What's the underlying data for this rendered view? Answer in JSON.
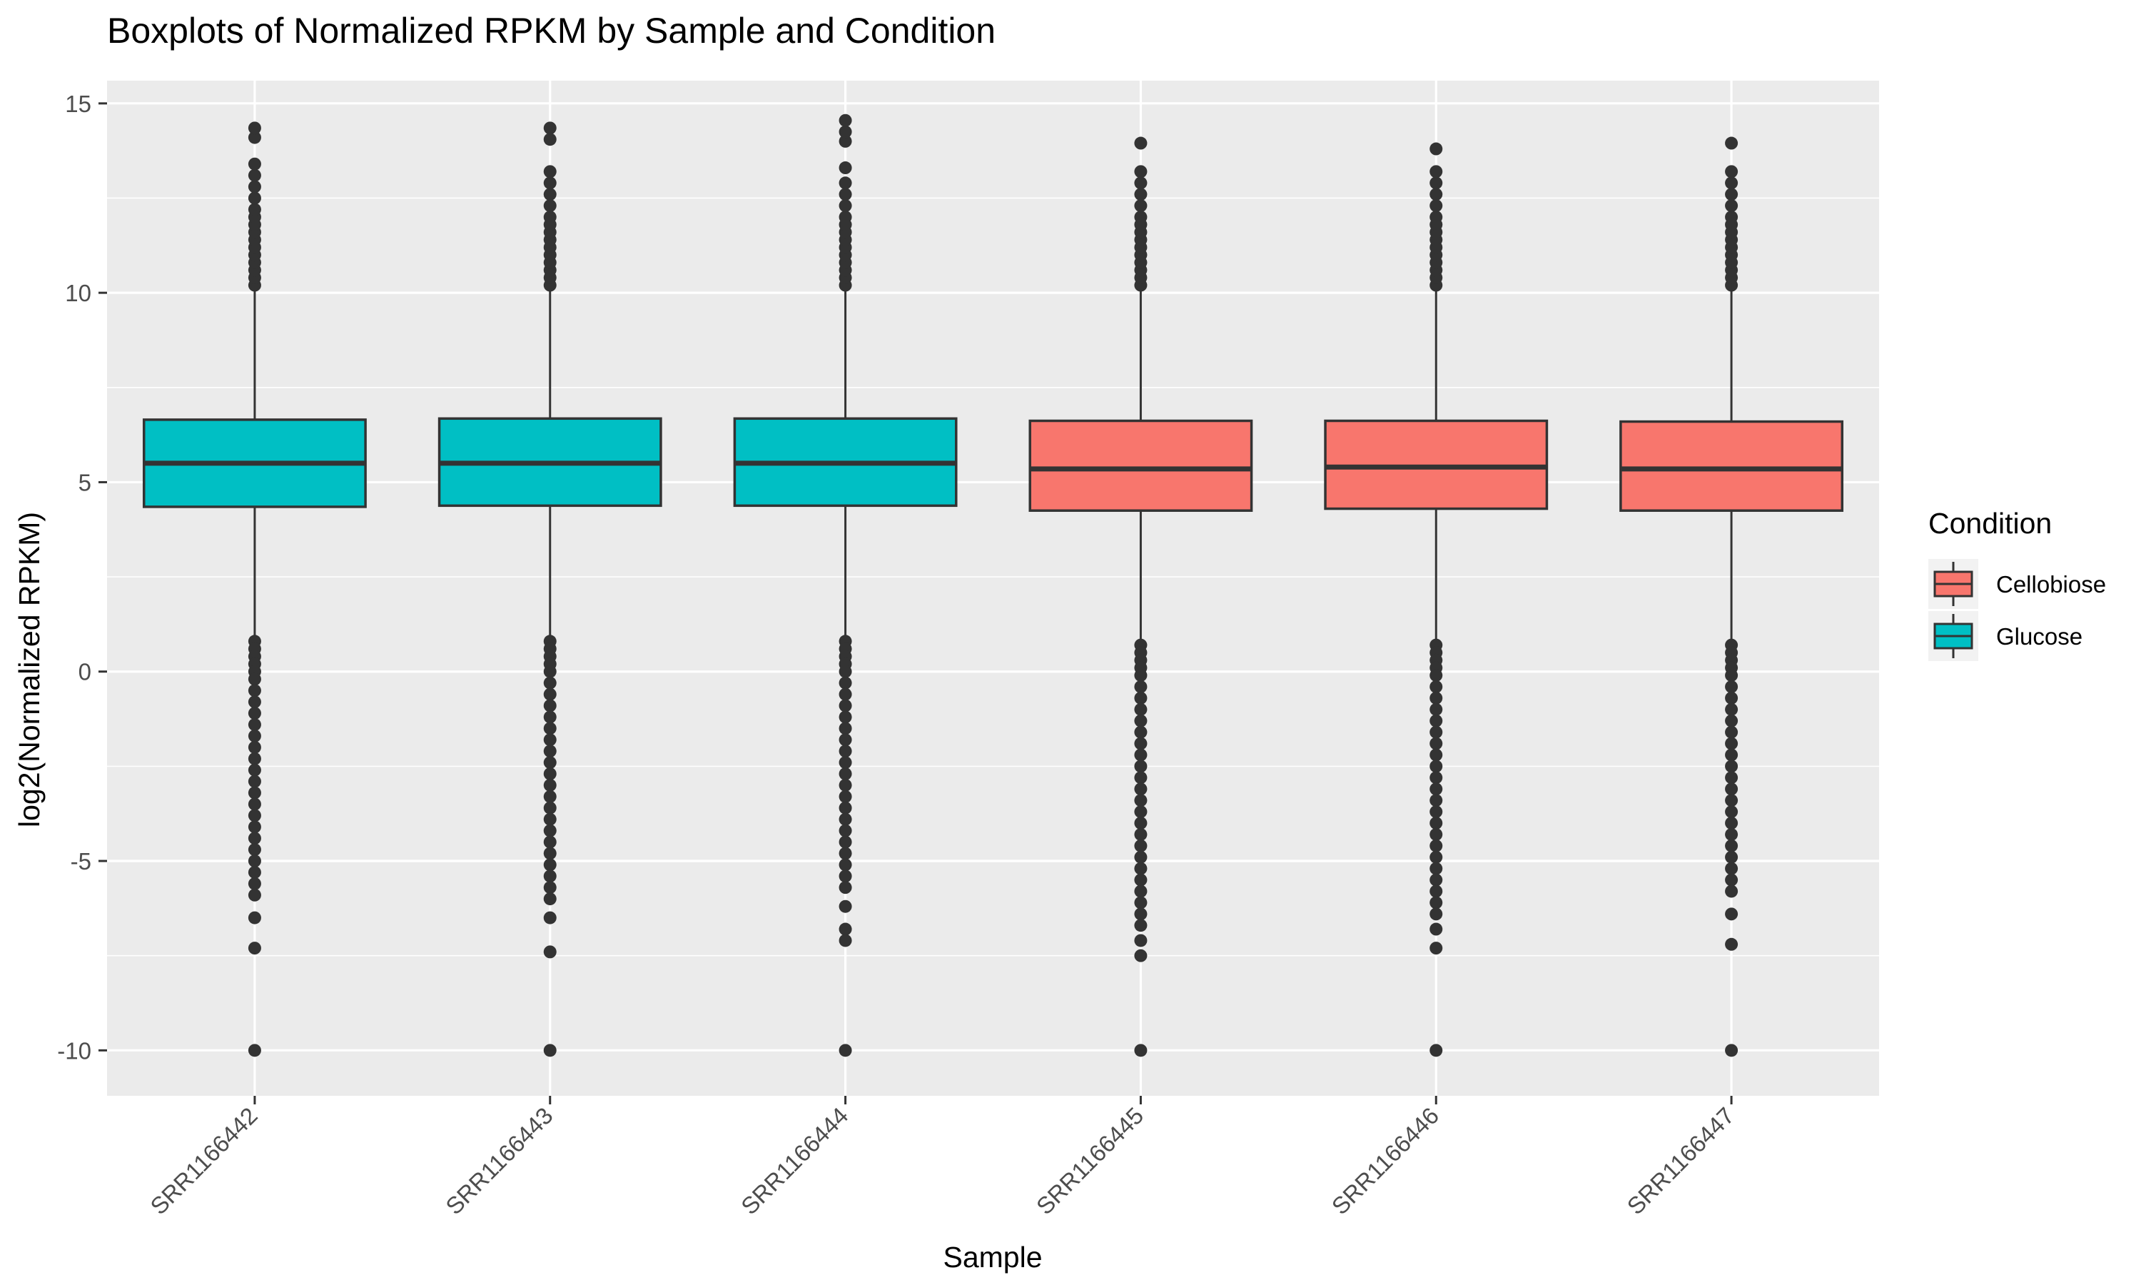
{
  "chart_data": {
    "type": "boxplot",
    "title": "Boxplots of Normalized RPKM by Sample and Condition",
    "xlabel": "Sample",
    "ylabel": "log2(Normalized RPKM)",
    "ylim": [
      -11.2,
      15.6
    ],
    "yticks": [
      "-10",
      "-5",
      "0",
      "5",
      "10",
      "15"
    ],
    "categories": [
      "SRR1166442",
      "SRR1166443",
      "SRR1166444",
      "SRR1166445",
      "SRR1166446",
      "SRR1166447"
    ],
    "legend": {
      "title": "Condition",
      "position": "right",
      "entries": [
        {
          "label": "Cellobiose",
          "color": "#F8766D"
        },
        {
          "label": "Glucose",
          "color": "#00BFC4"
        }
      ]
    },
    "colors": {
      "Cellobiose": "#F8766D",
      "Glucose": "#00BFC4",
      "panel": "#EBEBEB",
      "grid": "#FFFFFF",
      "box_line": "#333333"
    },
    "boxes": [
      {
        "sample": "SRR1166442",
        "condition": "Glucose",
        "q1": 4.35,
        "median": 5.5,
        "q3": 6.65,
        "whisker_low": 0.9,
        "whisker_high": 10.1,
        "outliers_high": [
          10.2,
          10.4,
          10.6,
          10.8,
          11.0,
          11.2,
          11.4,
          11.6,
          11.8,
          12.0,
          12.2,
          12.5,
          12.8,
          13.1,
          13.4,
          14.1,
          14.35
        ],
        "outliers_low": [
          0.8,
          0.6,
          0.4,
          0.2,
          0.0,
          -0.2,
          -0.5,
          -0.8,
          -1.1,
          -1.4,
          -1.7,
          -2.0,
          -2.3,
          -2.6,
          -2.9,
          -3.2,
          -3.5,
          -3.8,
          -4.1,
          -4.4,
          -4.7,
          -5.0,
          -5.3,
          -5.6,
          -5.9,
          -6.5,
          -7.3,
          -10.0
        ]
      },
      {
        "sample": "SRR1166443",
        "condition": "Glucose",
        "q1": 4.38,
        "median": 5.5,
        "q3": 6.68,
        "whisker_low": 0.9,
        "whisker_high": 10.1,
        "outliers_high": [
          10.2,
          10.4,
          10.6,
          10.8,
          11.0,
          11.2,
          11.4,
          11.6,
          11.8,
          12.0,
          12.3,
          12.6,
          12.9,
          13.2,
          14.05,
          14.35
        ],
        "outliers_low": [
          0.8,
          0.6,
          0.4,
          0.2,
          0.0,
          -0.3,
          -0.6,
          -0.9,
          -1.2,
          -1.5,
          -1.8,
          -2.1,
          -2.4,
          -2.7,
          -3.0,
          -3.3,
          -3.6,
          -3.9,
          -4.2,
          -4.5,
          -4.8,
          -5.1,
          -5.4,
          -5.7,
          -6.0,
          -6.5,
          -7.4,
          -10.0
        ]
      },
      {
        "sample": "SRR1166444",
        "condition": "Glucose",
        "q1": 4.38,
        "median": 5.5,
        "q3": 6.68,
        "whisker_low": 0.9,
        "whisker_high": 10.1,
        "outliers_high": [
          10.2,
          10.4,
          10.6,
          10.8,
          11.0,
          11.2,
          11.4,
          11.6,
          11.8,
          12.0,
          12.3,
          12.6,
          12.9,
          13.3,
          14.0,
          14.25,
          14.55
        ],
        "outliers_low": [
          0.8,
          0.6,
          0.4,
          0.2,
          0.0,
          -0.3,
          -0.6,
          -0.9,
          -1.2,
          -1.5,
          -1.8,
          -2.1,
          -2.4,
          -2.7,
          -3.0,
          -3.3,
          -3.6,
          -3.9,
          -4.2,
          -4.5,
          -4.8,
          -5.1,
          -5.4,
          -5.7,
          -6.2,
          -6.8,
          -7.1,
          -10.0
        ]
      },
      {
        "sample": "SRR1166445",
        "condition": "Cellobiose",
        "q1": 4.25,
        "median": 5.35,
        "q3": 6.62,
        "whisker_low": 0.75,
        "whisker_high": 10.1,
        "outliers_high": [
          10.2,
          10.4,
          10.6,
          10.8,
          11.0,
          11.2,
          11.4,
          11.6,
          11.8,
          12.0,
          12.3,
          12.6,
          12.9,
          13.2,
          13.95
        ],
        "outliers_low": [
          0.7,
          0.5,
          0.3,
          0.1,
          -0.1,
          -0.4,
          -0.7,
          -1.0,
          -1.3,
          -1.6,
          -1.9,
          -2.2,
          -2.5,
          -2.8,
          -3.1,
          -3.4,
          -3.7,
          -4.0,
          -4.3,
          -4.6,
          -4.9,
          -5.2,
          -5.5,
          -5.8,
          -6.1,
          -6.4,
          -6.7,
          -7.1,
          -7.5,
          -10.0
        ]
      },
      {
        "sample": "SRR1166446",
        "condition": "Cellobiose",
        "q1": 4.3,
        "median": 5.4,
        "q3": 6.62,
        "whisker_low": 0.8,
        "whisker_high": 10.1,
        "outliers_high": [
          10.2,
          10.4,
          10.6,
          10.8,
          11.0,
          11.2,
          11.4,
          11.6,
          11.8,
          12.0,
          12.3,
          12.6,
          12.9,
          13.2,
          13.8
        ],
        "outliers_low": [
          0.7,
          0.5,
          0.3,
          0.1,
          -0.1,
          -0.4,
          -0.7,
          -1.0,
          -1.3,
          -1.6,
          -1.9,
          -2.2,
          -2.5,
          -2.8,
          -3.1,
          -3.4,
          -3.7,
          -4.0,
          -4.3,
          -4.6,
          -4.9,
          -5.2,
          -5.5,
          -5.8,
          -6.1,
          -6.4,
          -6.8,
          -7.3,
          -10.0
        ]
      },
      {
        "sample": "SRR1166447",
        "condition": "Cellobiose",
        "q1": 4.25,
        "median": 5.35,
        "q3": 6.6,
        "whisker_low": 0.75,
        "whisker_high": 10.1,
        "outliers_high": [
          10.2,
          10.4,
          10.6,
          10.8,
          11.0,
          11.2,
          11.4,
          11.6,
          11.8,
          12.0,
          12.3,
          12.6,
          12.9,
          13.2,
          13.95
        ],
        "outliers_low": [
          0.7,
          0.5,
          0.3,
          0.1,
          -0.1,
          -0.4,
          -0.7,
          -1.0,
          -1.3,
          -1.6,
          -1.9,
          -2.2,
          -2.5,
          -2.8,
          -3.1,
          -3.4,
          -3.7,
          -4.0,
          -4.3,
          -4.6,
          -4.9,
          -5.2,
          -5.5,
          -5.8,
          -6.4,
          -7.2,
          -10.0
        ]
      }
    ]
  }
}
